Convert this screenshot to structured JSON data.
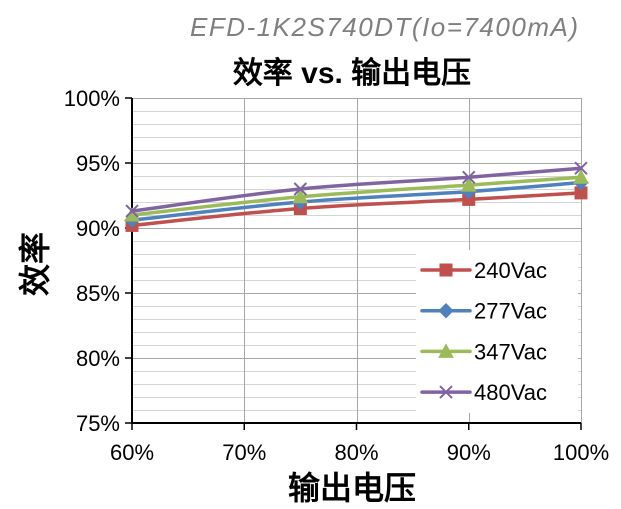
{
  "chart_data": {
    "type": "line",
    "smooth": true,
    "subtitle": "EFD-1K2S740DT(Io=7400mA)",
    "title": "效率 vs. 输出电压",
    "xlabel": "输出电压",
    "ylabel": "效率",
    "x": [
      60,
      75,
      90,
      100
    ],
    "xlim": [
      60,
      100
    ],
    "ylim": [
      75,
      100
    ],
    "x_ticks": [
      "60%",
      "70%",
      "80%",
      "90%",
      "100%"
    ],
    "y_ticks": [
      "100%",
      "95%",
      "90%",
      "85%",
      "80%",
      "75%"
    ],
    "grid": true,
    "minor_grid": true,
    "legend_position": "right",
    "series": [
      {
        "name": "240Vac",
        "color": "#C0504D",
        "marker": "square",
        "values": [
          90.2,
          91.5,
          92.2,
          92.7
        ]
      },
      {
        "name": "277Vac",
        "color": "#4F81BD",
        "marker": "diamond",
        "values": [
          90.6,
          92.0,
          92.8,
          93.5
        ]
      },
      {
        "name": "347Vac",
        "color": "#9BBB59",
        "marker": "triangle",
        "values": [
          91.0,
          92.4,
          93.3,
          93.9
        ]
      },
      {
        "name": "480Vac",
        "color": "#8064A2",
        "marker": "x",
        "values": [
          91.3,
          93.0,
          93.9,
          94.6
        ]
      }
    ]
  }
}
